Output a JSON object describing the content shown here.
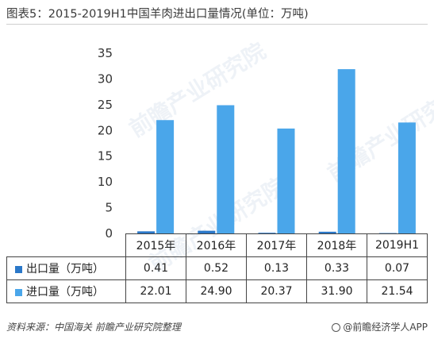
{
  "title": "图表5：2015-2019H1中国羊肉进出口量情况(单位：万吨)",
  "watermark": "前瞻产业研究院",
  "colors": {
    "export": "#2b78c9",
    "import": "#4aa6ea"
  },
  "chart_data": {
    "type": "bar",
    "categories": [
      "2015年",
      "2016年",
      "2017年",
      "2018年",
      "2019H1"
    ],
    "series": [
      {
        "name": "出口量（万吨）",
        "values": [
          0.41,
          0.52,
          0.13,
          0.33,
          0.07
        ]
      },
      {
        "name": "进口量（万吨）",
        "values": [
          22.01,
          24.9,
          20.37,
          31.9,
          21.54
        ]
      }
    ],
    "value_labels": [
      [
        "0.41",
        "0.52",
        "0.13",
        "0.33",
        "0.07"
      ],
      [
        "22.01",
        "24.90",
        "20.37",
        "31.90",
        "21.54"
      ]
    ],
    "ylim": [
      0,
      35
    ],
    "yticks": [
      0,
      5,
      10,
      15,
      20,
      25,
      30,
      35
    ],
    "grid": false,
    "legend": "data-table"
  },
  "source": "资料来源：中国海关 前瞻产业研究院整理",
  "app_label": "@前瞻经济学人APP"
}
